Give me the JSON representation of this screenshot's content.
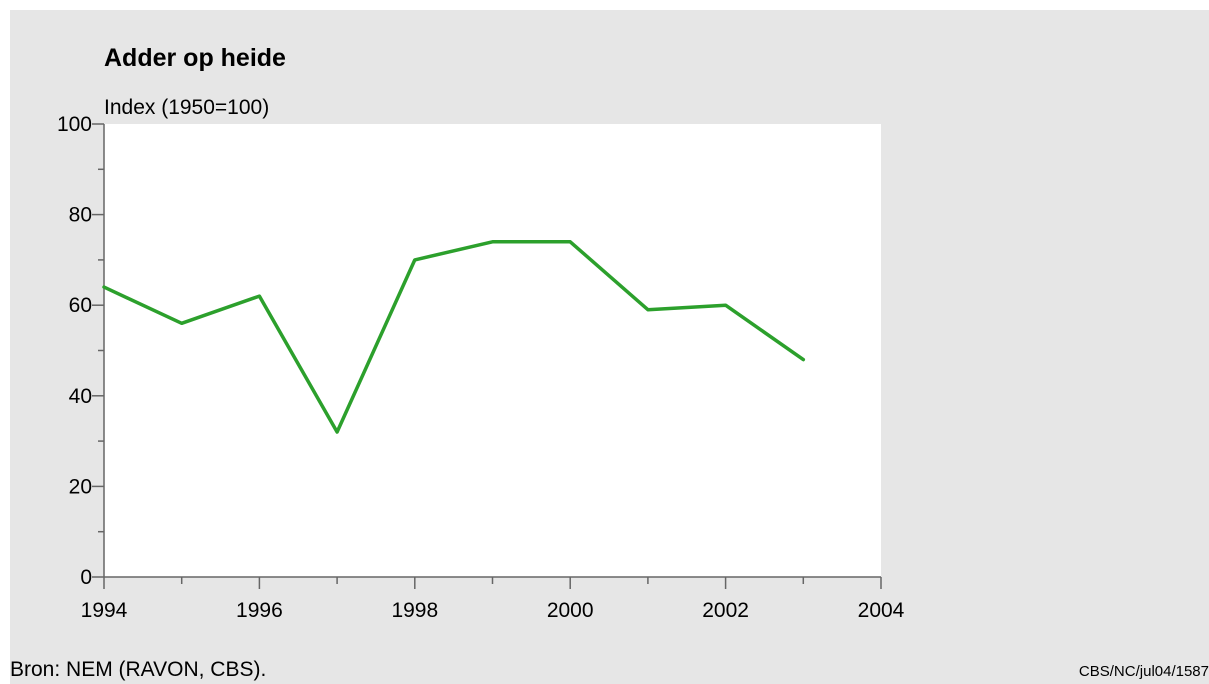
{
  "chart_data": {
    "type": "line",
    "title": "Adder op heide",
    "ylabel": "Index (1950=100)",
    "xlabel": "",
    "xlim": [
      1994,
      2004
    ],
    "ylim": [
      0,
      100
    ],
    "x_ticks": [
      1994,
      1996,
      1998,
      2000,
      2002,
      2004
    ],
    "y_ticks": [
      0,
      20,
      40,
      60,
      80,
      100
    ],
    "grid": false,
    "series": [
      {
        "color": "#2ca02c",
        "x": [
          1994,
          1995,
          1996,
          1997,
          1998,
          1999,
          2000,
          2001,
          2002,
          2003
        ],
        "y": [
          64,
          56,
          62,
          32,
          70,
          74,
          74,
          59,
          60,
          48
        ]
      }
    ],
    "source": "Bron: NEM (RAVON, CBS).",
    "code": "CBS/NC/jul04/1587"
  }
}
